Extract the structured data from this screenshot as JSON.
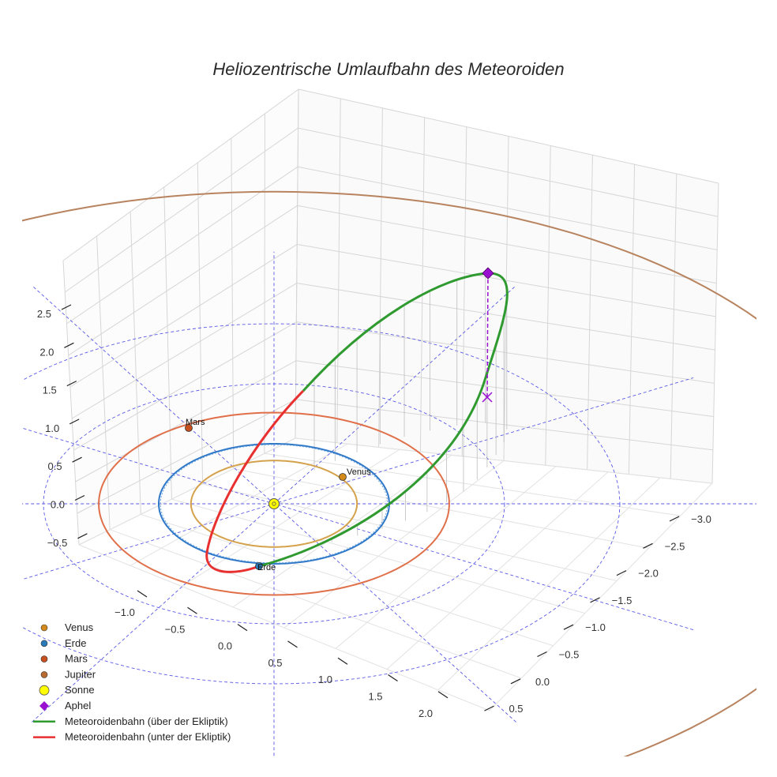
{
  "chart_data": {
    "type": "line",
    "projection": "3d",
    "title": "Heliozentrische Umlaufbahn des Meteoroiden",
    "axes": {
      "x_ticks": [
        "−1.0",
        "−0.5",
        "0.0",
        "0.5",
        "1.0",
        "1.5",
        "2.0"
      ],
      "y_ticks": [
        "−3.0",
        "−2.5",
        "−2.0",
        "−1.5",
        "−1.0",
        "−0.5",
        "0.0",
        "0.5"
      ],
      "z_ticks": [
        "2.5",
        "2.0",
        "1.5",
        "1.0",
        "0.5",
        "0.0",
        "−0.5"
      ],
      "xlim": [
        -1.2,
        2.2
      ],
      "ylim": [
        -3.2,
        0.6
      ],
      "zlim": [
        -0.7,
        2.7
      ],
      "grid": true
    },
    "ecliptic_grid": {
      "color": "#5a5ae6",
      "style": "dashed",
      "ring_radii_au": [
        1,
        2,
        3
      ]
    },
    "planets": [
      {
        "name": "Venus",
        "orbit_radius_au": 0.72,
        "color": "#d4a24c",
        "point_color": "#d38a1a"
      },
      {
        "name": "Erde",
        "orbit_radius_au": 1.0,
        "color": "#2f78c8",
        "point_color": "#2a7ab8"
      },
      {
        "name": "Mars",
        "orbit_radius_au": 1.52,
        "color": "#e0704a",
        "point_color": "#c8501e"
      },
      {
        "name": "Jupiter",
        "orbit_radius_au": 5.2,
        "color": "#b88460",
        "point_color": "#b86a30"
      }
    ],
    "sun": {
      "name": "Sonne",
      "color": "#ffff00"
    },
    "meteoroid": {
      "above_label": "Meteoroidenbahn (über der Ekliptik)",
      "below_label": "Meteoroidenbahn (unter der Ekliptik)",
      "above_color": "#2f9a2f",
      "below_color": "#e83030"
    },
    "aphel": {
      "name": "Aphel",
      "color": "#9a10d0"
    },
    "point_labels": [
      "Venus",
      "Erde",
      "Mars"
    ],
    "legend": {
      "position": "bottom-left",
      "entries": [
        {
          "label": "Venus",
          "symbol": "dot",
          "color": "#d38a1a"
        },
        {
          "label": "Erde",
          "symbol": "dot",
          "color": "#2a7ab8"
        },
        {
          "label": "Mars",
          "symbol": "dot",
          "color": "#c8501e"
        },
        {
          "label": "Jupiter",
          "symbol": "dot",
          "color": "#b86a30"
        },
        {
          "label": "Sonne",
          "symbol": "bigdot",
          "color": "#ffff00"
        },
        {
          "label": "Aphel",
          "symbol": "diamond",
          "color": "#9a10d0"
        },
        {
          "label": "Meteoroidenbahn (über der Ekliptik)",
          "symbol": "line",
          "color": "#2f9a2f"
        },
        {
          "label": "Meteoroidenbahn (unter der Ekliptik)",
          "symbol": "line",
          "color": "#e83030"
        }
      ]
    }
  }
}
